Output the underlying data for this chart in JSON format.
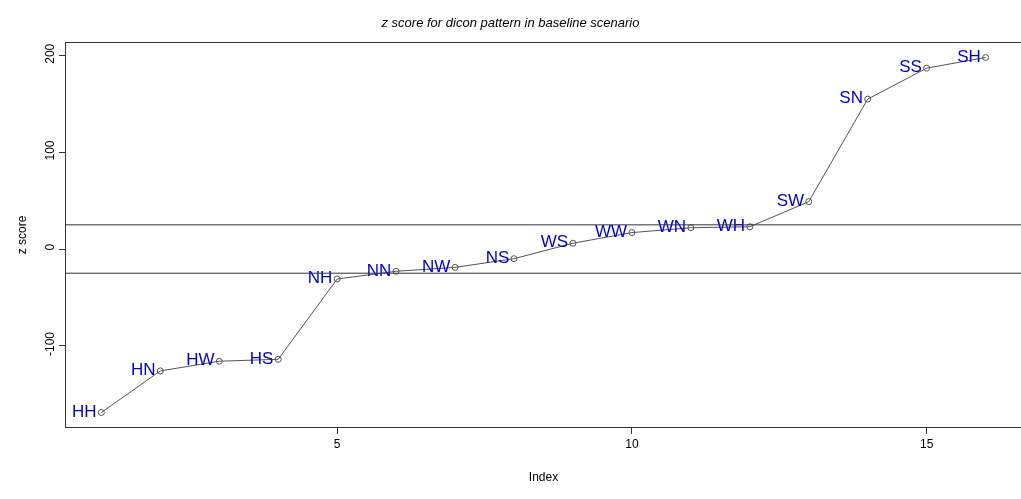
{
  "chart_data": {
    "type": "line",
    "title": "z score for dicon pattern in baseline scenario",
    "xlabel": "Index",
    "ylabel": "z score",
    "x": [
      1,
      2,
      3,
      4,
      5,
      6,
      7,
      8,
      9,
      10,
      11,
      12,
      13,
      14,
      15,
      16
    ],
    "series": [
      {
        "color": "#555555",
        "values": [
          -169,
          -126,
          -116,
          -114,
          -31,
          -23,
          -19,
          -10,
          6,
          17,
          22,
          23,
          49,
          155,
          187,
          198
        ],
        "value_labels": [
          "HH",
          "HN",
          "HW",
          "HS",
          "NH",
          "NN",
          "NW",
          "NS",
          "WS",
          "WW",
          "WN",
          "WH",
          "SW",
          "SN",
          "SS",
          "SH"
        ]
      }
    ],
    "xlim": [
      0.4,
      16.6
    ],
    "ylim": [
      -184,
      213
    ],
    "xticks": [
      5,
      10,
      15
    ],
    "yticks": [
      -100,
      0,
      100,
      200
    ],
    "ref_lines": [
      {
        "axis": "y",
        "value": 25
      },
      {
        "axis": "y",
        "value": -25
      }
    ],
    "grid": false,
    "marker": "circle",
    "line_style": "solid"
  }
}
